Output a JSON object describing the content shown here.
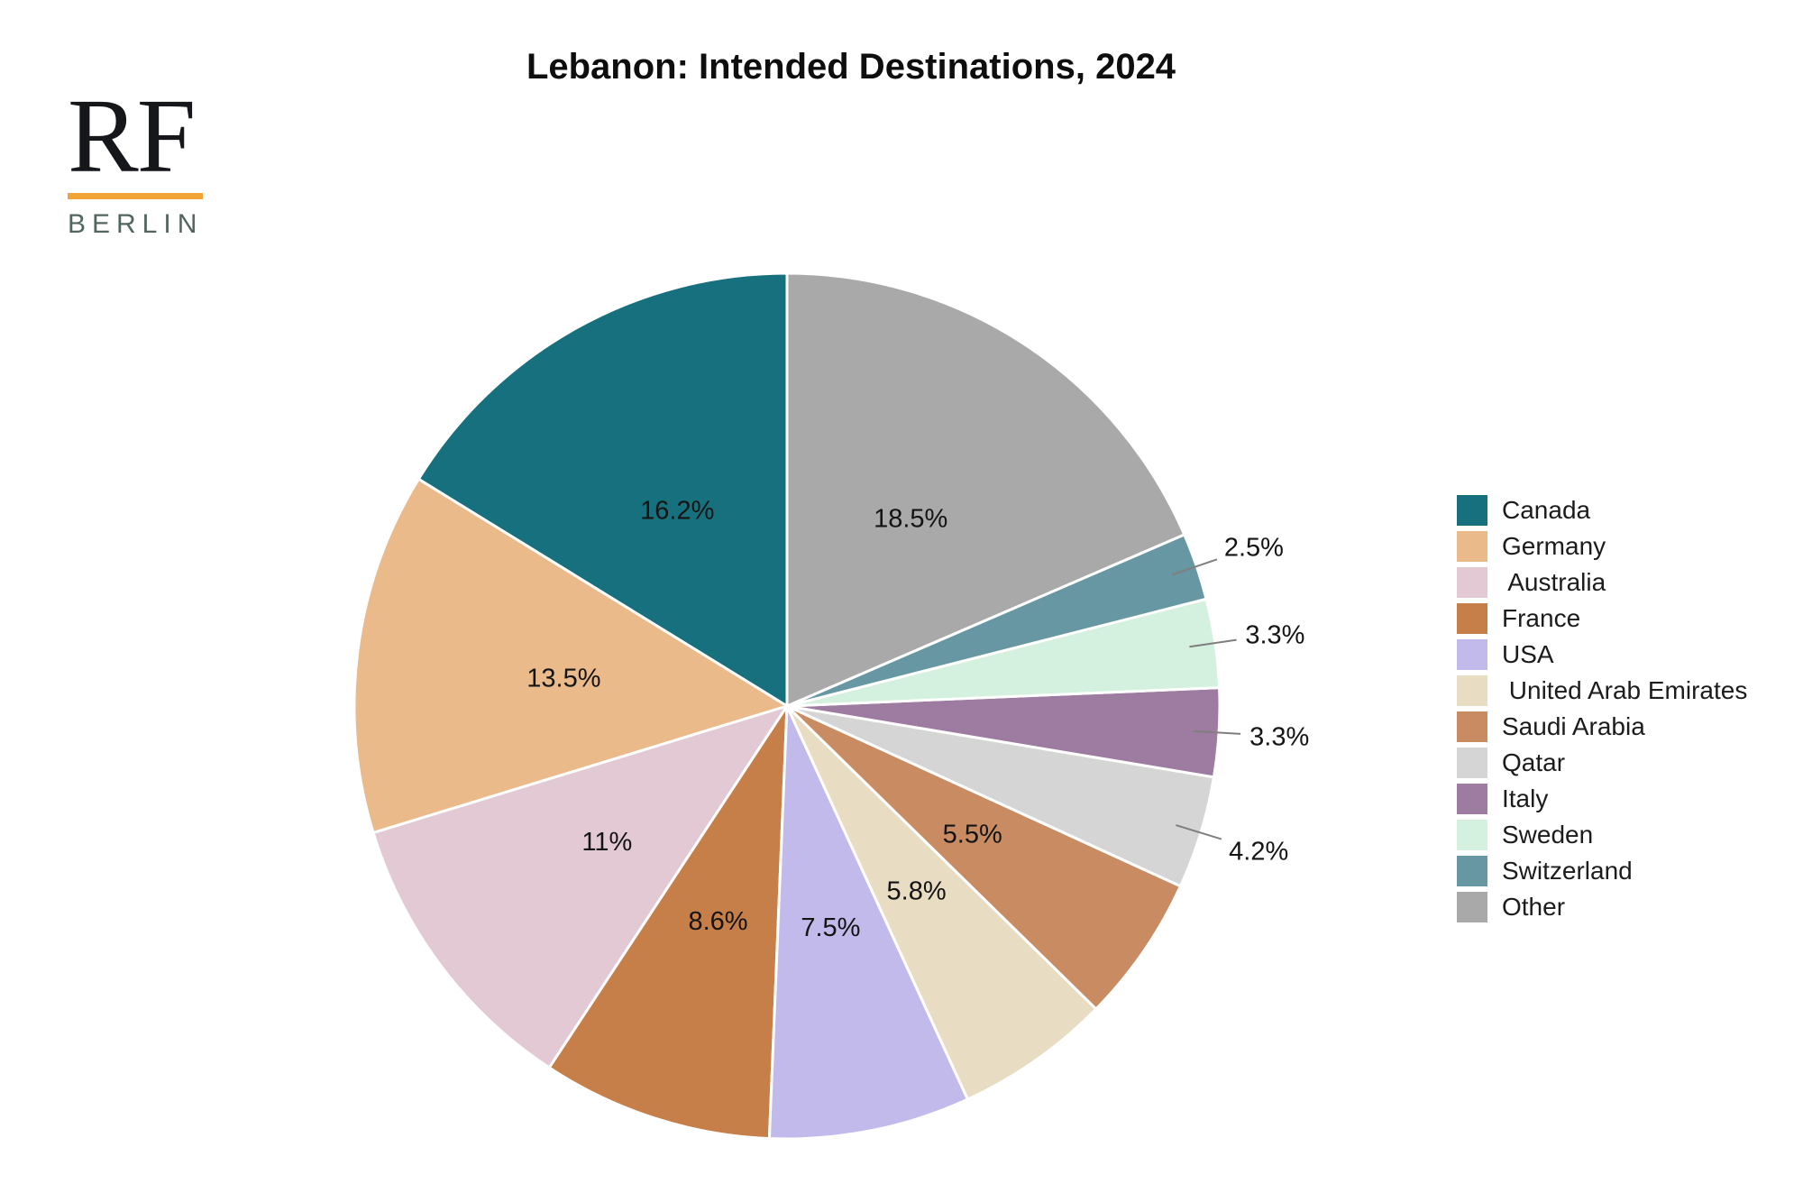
{
  "page": {
    "background": "#ffffff"
  },
  "logo": {
    "monogram": "RF",
    "city": "BERLIN",
    "monogram_color": "#16171b",
    "bar_color": "#F2A536",
    "city_color": "#52655E"
  },
  "title": "Lebanon: Intended Destinations, 2024",
  "chart_data": {
    "type": "pie",
    "title": "Lebanon: Intended Destinations, 2024",
    "unit": "percent",
    "start_angle_deg": 90,
    "direction": "counterclockwise",
    "legend_position": "right",
    "label_color": "#141414",
    "leader_line_color": "#7f7f7f",
    "slice_border_color": "#ffffff",
    "slices": [
      {
        "label": "Canada",
        "legend_label": "Canada",
        "value": 16.2,
        "display": "16.2%",
        "color": "#17707D",
        "label_placement": "inside"
      },
      {
        "label": "Germany",
        "legend_label": "Germany",
        "value": 13.5,
        "display": "13.5%",
        "color": "#EABA8B",
        "label_placement": "inside"
      },
      {
        "label": "Australia",
        "legend_label": " Australia",
        "value": 11,
        "display": "11%",
        "color": "#E2C9D4",
        "label_placement": "inside"
      },
      {
        "label": "France",
        "legend_label": "France",
        "value": 8.6,
        "display": "8.6%",
        "color": "#C67F48",
        "label_placement": "inside"
      },
      {
        "label": "USA",
        "legend_label": "USA",
        "value": 7.5,
        "display": "7.5%",
        "color": "#C3BAEC",
        "label_placement": "inside"
      },
      {
        "label": "United Arab Emirates",
        "legend_label": " United Arab Emirates",
        "value": 5.8,
        "display": "5.8%",
        "color": "#E8DCC3",
        "label_placement": "inside"
      },
      {
        "label": "Saudi Arabia",
        "legend_label": "Saudi Arabia",
        "value": 5.5,
        "display": "5.5%",
        "color": "#C98C62",
        "label_placement": "inside"
      },
      {
        "label": "Qatar",
        "legend_label": "Qatar",
        "value": 4.2,
        "display": "4.2%",
        "color": "#D5D5D5",
        "label_placement": "outside"
      },
      {
        "label": "Italy",
        "legend_label": "Italy",
        "value": 3.3,
        "display": "3.3%",
        "color": "#9E7BA0",
        "label_placement": "outside"
      },
      {
        "label": "Sweden",
        "legend_label": "Sweden",
        "value": 3.3,
        "display": "3.3%",
        "color": "#D4F0DE",
        "label_placement": "outside"
      },
      {
        "label": "Switzerland",
        "legend_label": "Switzerland",
        "value": 2.5,
        "display": "2.5%",
        "color": "#6697A2",
        "label_placement": "outside"
      },
      {
        "label": "Other",
        "legend_label": "Other",
        "value": 18.5,
        "display": "18.5%",
        "color": "#A9A9A9",
        "label_placement": "inside"
      }
    ]
  }
}
